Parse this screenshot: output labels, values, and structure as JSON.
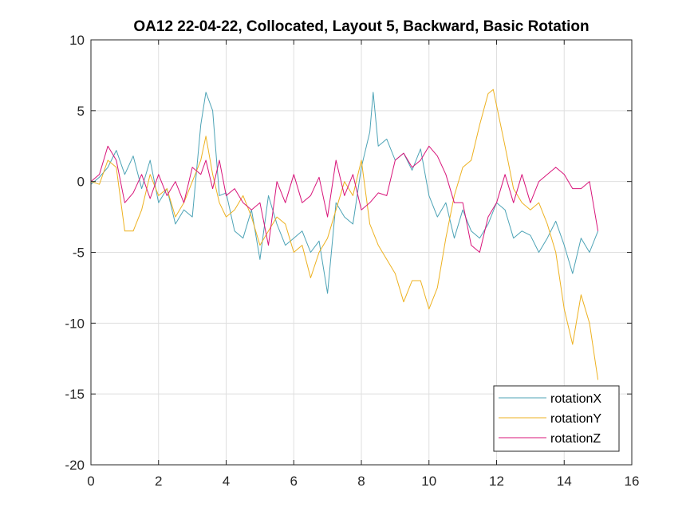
{
  "chart_data": {
    "type": "line",
    "title": "OA12 22-04-22, Collocated, Layout 5, Backward, Basic Rotation",
    "xlabel": "",
    "ylabel": "",
    "xlim": [
      0,
      16
    ],
    "ylim": [
      -20,
      10
    ],
    "xticks": [
      "0",
      "2",
      "4",
      "6",
      "8",
      "10",
      "12",
      "14",
      "16"
    ],
    "yticks": [
      "10",
      "5",
      "0",
      "-5",
      "-10",
      "-15",
      "-20"
    ],
    "grid": true,
    "legend_position": "bottom-right",
    "series": [
      {
        "name": "rotationX",
        "color": "#4DA3B6",
        "x": [
          0,
          0.25,
          0.5,
          0.75,
          1.0,
          1.25,
          1.5,
          1.75,
          2.0,
          2.25,
          2.5,
          2.75,
          3.0,
          3.25,
          3.4,
          3.6,
          3.8,
          4.0,
          4.25,
          4.5,
          4.75,
          5.0,
          5.25,
          5.5,
          5.75,
          6.0,
          6.25,
          6.5,
          6.75,
          7.0,
          7.25,
          7.5,
          7.75,
          8.0,
          8.25,
          8.35,
          8.5,
          8.75,
          9.0,
          9.25,
          9.5,
          9.75,
          10.0,
          10.25,
          10.5,
          10.75,
          11.0,
          11.25,
          11.5,
          11.75,
          12.0,
          12.25,
          12.5,
          12.75,
          13.0,
          13.25,
          13.5,
          13.75,
          14.0,
          14.25,
          14.5,
          14.75,
          15.0
        ],
        "y": [
          -0.2,
          0.3,
          1.0,
          2.2,
          0.5,
          1.8,
          -0.5,
          1.5,
          -1.5,
          -0.5,
          -3.0,
          -2.0,
          -2.5,
          4.0,
          6.3,
          5.0,
          -1.0,
          -0.8,
          -3.5,
          -4.0,
          -2.0,
          -5.5,
          -1.0,
          -3.0,
          -4.5,
          -4.0,
          -3.5,
          -5.0,
          -4.2,
          -7.9,
          -1.5,
          -2.5,
          -3.0,
          1.0,
          3.5,
          6.3,
          2.5,
          3.0,
          1.5,
          2.0,
          0.8,
          2.3,
          -1.0,
          -2.5,
          -1.5,
          -4.0,
          -2.0,
          -3.5,
          -4.0,
          -3.0,
          -1.5,
          -2.0,
          -4.0,
          -3.5,
          -3.8,
          -5.0,
          -4.0,
          -2.8,
          -4.5,
          -6.5,
          -4.0,
          -5.0,
          -3.5
        ]
      },
      {
        "name": "rotationY",
        "color": "#EDB120",
        "x": [
          0,
          0.25,
          0.5,
          0.75,
          1.0,
          1.25,
          1.5,
          1.75,
          2.0,
          2.25,
          2.5,
          2.75,
          3.0,
          3.25,
          3.4,
          3.6,
          3.8,
          4.0,
          4.25,
          4.5,
          4.75,
          5.0,
          5.25,
          5.5,
          5.75,
          6.0,
          6.25,
          6.5,
          6.75,
          7.0,
          7.25,
          7.5,
          7.75,
          8.0,
          8.25,
          8.5,
          8.75,
          9.0,
          9.25,
          9.5,
          9.75,
          10.0,
          10.25,
          10.5,
          10.75,
          11.0,
          11.25,
          11.5,
          11.75,
          11.9,
          12.25,
          12.5,
          12.75,
          13.0,
          13.25,
          13.5,
          13.75,
          14.0,
          14.25,
          14.5,
          14.75,
          15.0
        ],
        "y": [
          0,
          -0.2,
          1.5,
          1.0,
          -3.5,
          -3.5,
          -2.0,
          0.5,
          -1.0,
          -0.5,
          -2.5,
          -1.5,
          0,
          1.5,
          3.2,
          0.5,
          -1.5,
          -2.5,
          -2.0,
          -1.0,
          -2.5,
          -4.5,
          -3.5,
          -2.5,
          -3.0,
          -5.0,
          -4.5,
          -6.8,
          -5.0,
          -4.0,
          -2.0,
          0,
          -1.0,
          1.5,
          -3.0,
          -4.5,
          -5.5,
          -6.5,
          -8.5,
          -7.0,
          -7.0,
          -9.0,
          -7.5,
          -4.0,
          -1.0,
          1.0,
          1.5,
          4.0,
          6.2,
          6.5,
          2.5,
          -0.5,
          -1.5,
          -2.0,
          -1.5,
          -3.0,
          -5.0,
          -9.0,
          -11.5,
          -8.0,
          -10.0,
          -14.0
        ]
      },
      {
        "name": "rotationZ",
        "color": "#D8157A",
        "x": [
          0,
          0.25,
          0.5,
          0.75,
          1.0,
          1.25,
          1.5,
          1.75,
          2.0,
          2.25,
          2.5,
          2.75,
          3.0,
          3.25,
          3.4,
          3.6,
          3.8,
          4.0,
          4.25,
          4.5,
          4.75,
          5.0,
          5.25,
          5.5,
          5.75,
          6.0,
          6.25,
          6.5,
          6.75,
          7.0,
          7.25,
          7.5,
          7.75,
          8.0,
          8.25,
          8.5,
          8.75,
          9.0,
          9.25,
          9.5,
          9.75,
          10.0,
          10.25,
          10.5,
          10.75,
          11.0,
          11.25,
          11.5,
          11.75,
          12.0,
          12.25,
          12.5,
          12.75,
          13.0,
          13.25,
          13.5,
          13.75,
          14.0,
          14.25,
          14.5,
          14.75,
          15.0
        ],
        "y": [
          0,
          0.5,
          2.5,
          1.5,
          -1.5,
          -0.8,
          0.5,
          -1.2,
          0.5,
          -1.0,
          0,
          -1.5,
          1.0,
          0.5,
          1.5,
          -0.5,
          1.5,
          -1.0,
          -0.5,
          -1.5,
          -2.0,
          -1.5,
          -4.5,
          0,
          -1.5,
          0.5,
          -1.5,
          -1.0,
          0.3,
          -2.5,
          1.5,
          -1.0,
          0.5,
          -2.0,
          -1.5,
          -0.8,
          -1.0,
          1.5,
          2.0,
          1.0,
          1.5,
          2.5,
          1.8,
          0.5,
          -1.5,
          -1.5,
          -4.5,
          -5.0,
          -2.5,
          -1.5,
          0.5,
          -1.5,
          0.5,
          -1.5,
          0,
          0.5,
          1.0,
          0.5,
          -0.5,
          -0.5,
          0,
          -3.5
        ]
      }
    ]
  }
}
